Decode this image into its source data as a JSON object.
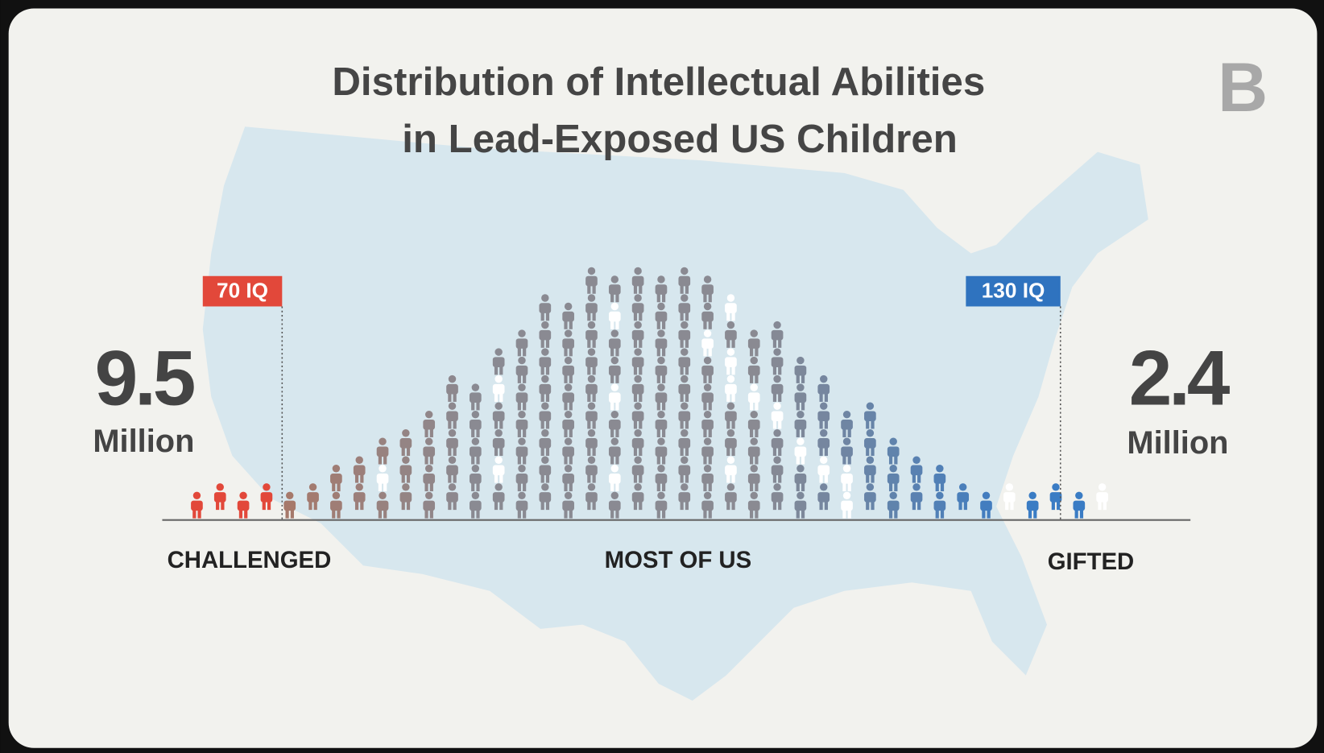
{
  "title": {
    "lines": [
      "Distribution of Intellectual Abilities",
      "in Lead-Exposed US Children"
    ]
  },
  "panel_label": "B",
  "markers": [
    {
      "label": "70 IQ"
    },
    {
      "label": "130 IQ"
    }
  ],
  "left_stat": {
    "value": 9.5,
    "unit": "Million"
  },
  "right_stat": {
    "value": 2.4,
    "unit": "Million"
  },
  "categories": [
    "CHALLENGED",
    "MOST OF US",
    "GIFTED"
  ]
}
